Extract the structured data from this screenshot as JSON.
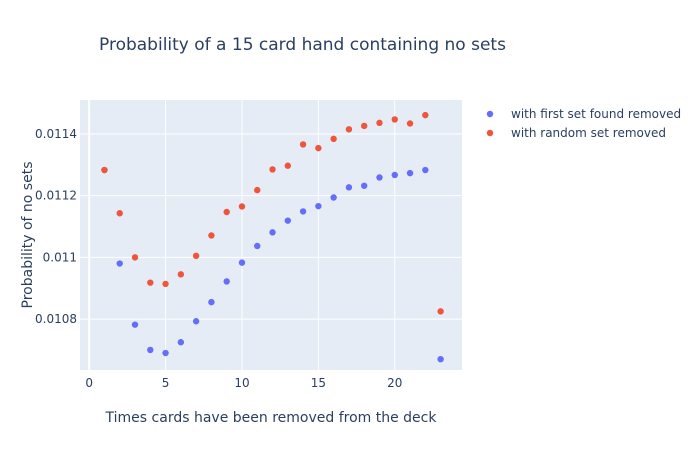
{
  "chart_data": {
    "type": "scatter",
    "title": "Probability of a 15 card hand containing no sets",
    "xlabel": "Times cards have been removed from the deck",
    "ylabel": "Probability of no sets",
    "xlim": [
      -0.6,
      24.4
    ],
    "ylim": [
      0.010635,
      0.01151
    ],
    "x_ticks": [
      0,
      5,
      10,
      15,
      20
    ],
    "y_ticks": [
      0.0108,
      0.011,
      0.0112,
      0.0114
    ],
    "y_tick_labels": [
      "0.0108",
      "0.011",
      "0.0112",
      "0.0114"
    ],
    "grid": true,
    "legend_position": "right",
    "series": [
      {
        "name": "with first set found removed",
        "color": "#636efa",
        "x": [
          1,
          2,
          3,
          4,
          5,
          6,
          7,
          8,
          9,
          10,
          11,
          12,
          13,
          14,
          15,
          16,
          17,
          18,
          19,
          20,
          21,
          22,
          23
        ],
        "y": [
          0.011283,
          0.01098,
          0.010782,
          0.0107,
          0.01069,
          0.010725,
          0.010793,
          0.010855,
          0.010922,
          0.010983,
          0.011037,
          0.011081,
          0.011119,
          0.011149,
          0.011166,
          0.011194,
          0.011227,
          0.011232,
          0.011259,
          0.011267,
          0.011273,
          0.011283,
          0.01067
        ]
      },
      {
        "name": "with random set removed",
        "color": "#ef553b",
        "x": [
          1,
          2,
          3,
          4,
          5,
          6,
          7,
          8,
          9,
          10,
          11,
          12,
          13,
          14,
          15,
          16,
          17,
          18,
          19,
          20,
          21,
          22,
          23
        ],
        "y": [
          0.011283,
          0.011143,
          0.011,
          0.010918,
          0.010914,
          0.010945,
          0.011005,
          0.011071,
          0.011147,
          0.011165,
          0.011218,
          0.011285,
          0.011297,
          0.011366,
          0.011354,
          0.011384,
          0.011415,
          0.011426,
          0.011436,
          0.011447,
          0.011434,
          0.011461,
          0.010825
        ]
      }
    ]
  }
}
